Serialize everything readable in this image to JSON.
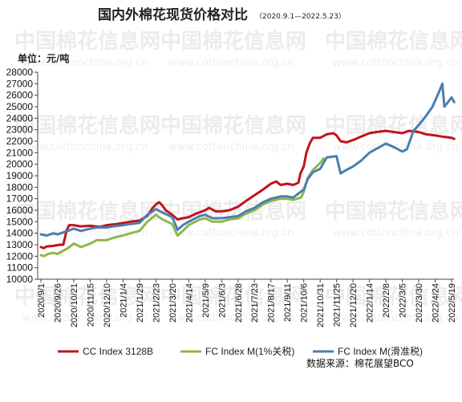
{
  "title": "国内外棉花现货价格对比",
  "subtitle": "（2020.9.1—2022.5.23）",
  "unit_label": "单位：元/吨",
  "source_label": "数据来源：棉花展望BCO",
  "watermark": {
    "name": "中国棉花信息网",
    "url": "www.cottonchina.org.cn"
  },
  "chart_data": {
    "type": "line",
    "title": "国内外棉花现货价格对比",
    "ylim": [
      10000,
      28000
    ],
    "y_ticks": [
      10000,
      11000,
      12000,
      13000,
      14000,
      15000,
      16000,
      17000,
      18000,
      19000,
      20000,
      21000,
      22000,
      23000,
      24000,
      25000,
      26000,
      27000,
      28000
    ],
    "x_tick_labels": [
      "2020/9/1",
      "2020/9/26",
      "2020/10/21",
      "2020/11/15",
      "2020/12/10",
      "2021/1/4",
      "2021/1/29",
      "2021/2/23",
      "2021/3/20",
      "2021/4/14",
      "2021/5/9",
      "2021/6/3",
      "2021/6/28",
      "2021/7/23",
      "2021/8/17",
      "2021/9/11",
      "2021/10/6",
      "2021/10/31",
      "2021/11/25",
      "2021/12/20",
      "2022/1/14",
      "2022/2/8",
      "2022/3/5",
      "2022/3/30",
      "2022/4/24",
      "2022/5/19"
    ],
    "grid": false,
    "legend_position": "bottom",
    "series": [
      {
        "name": "CC Index 3128B",
        "color": "#c0141c",
        "points": [
          [
            "2020-09-01",
            12800
          ],
          [
            "2020-09-05",
            12700
          ],
          [
            "2020-09-10",
            12850
          ],
          [
            "2020-09-20",
            12900
          ],
          [
            "2020-09-30",
            13000
          ],
          [
            "2020-10-05",
            13000
          ],
          [
            "2020-10-10",
            14200
          ],
          [
            "2020-10-14",
            14700
          ],
          [
            "2020-10-21",
            14700
          ],
          [
            "2020-10-31",
            14600
          ],
          [
            "2020-11-15",
            14650
          ],
          [
            "2020-11-30",
            14550
          ],
          [
            "2020-12-10",
            14700
          ],
          [
            "2020-12-25",
            14800
          ],
          [
            "2021-01-04",
            14900
          ],
          [
            "2021-01-15",
            15000
          ],
          [
            "2021-01-29",
            15100
          ],
          [
            "2021-02-10",
            15500
          ],
          [
            "2021-02-18",
            16200
          ],
          [
            "2021-02-23",
            16500
          ],
          [
            "2021-02-28",
            16700
          ],
          [
            "2021-03-05",
            16400
          ],
          [
            "2021-03-10",
            16000
          ],
          [
            "2021-03-20",
            15600
          ],
          [
            "2021-03-28",
            15200
          ],
          [
            "2021-04-05",
            15300
          ],
          [
            "2021-04-14",
            15400
          ],
          [
            "2021-04-25",
            15700
          ],
          [
            "2021-05-09",
            16000
          ],
          [
            "2021-05-15",
            16200
          ],
          [
            "2021-05-25",
            15900
          ],
          [
            "2021-06-03",
            15900
          ],
          [
            "2021-06-15",
            16000
          ],
          [
            "2021-06-28",
            16300
          ],
          [
            "2021-07-10",
            16800
          ],
          [
            "2021-07-23",
            17300
          ],
          [
            "2021-08-05",
            17800
          ],
          [
            "2021-08-17",
            18300
          ],
          [
            "2021-08-25",
            18500
          ],
          [
            "2021-09-01",
            18200
          ],
          [
            "2021-09-11",
            18300
          ],
          [
            "2021-09-20",
            18200
          ],
          [
            "2021-09-28",
            18400
          ],
          [
            "2021-10-01",
            19200
          ],
          [
            "2021-10-06",
            19800
          ],
          [
            "2021-10-10",
            21000
          ],
          [
            "2021-10-15",
            21800
          ],
          [
            "2021-10-20",
            22300
          ],
          [
            "2021-10-31",
            22300
          ],
          [
            "2021-11-10",
            22600
          ],
          [
            "2021-11-20",
            22700
          ],
          [
            "2021-11-25",
            22500
          ],
          [
            "2021-12-01",
            22000
          ],
          [
            "2021-12-10",
            21900
          ],
          [
            "2021-12-20",
            22100
          ],
          [
            "2022-01-01",
            22400
          ],
          [
            "2022-01-14",
            22700
          ],
          [
            "2022-01-25",
            22800
          ],
          [
            "2022-02-08",
            22900
          ],
          [
            "2022-02-20",
            22800
          ],
          [
            "2022-03-05",
            22700
          ],
          [
            "2022-03-15",
            22900
          ],
          [
            "2022-03-30",
            22800
          ],
          [
            "2022-04-10",
            22600
          ],
          [
            "2022-04-24",
            22500
          ],
          [
            "2022-05-05",
            22400
          ],
          [
            "2022-05-19",
            22300
          ],
          [
            "2022-05-23",
            22200
          ]
        ]
      },
      {
        "name": "FC Index M(1%关税)",
        "color": "#8fb74a",
        "points": [
          [
            "2020-09-01",
            12100
          ],
          [
            "2020-09-05",
            12000
          ],
          [
            "2020-09-12",
            12200
          ],
          [
            "2020-09-20",
            12300
          ],
          [
            "2020-09-26",
            12200
          ],
          [
            "2020-10-12",
            12700
          ],
          [
            "2020-10-21",
            13100
          ],
          [
            "2020-11-01",
            12800
          ],
          [
            "2020-11-15",
            13100
          ],
          [
            "2020-11-25",
            13400
          ],
          [
            "2020-12-10",
            13400
          ],
          [
            "2020-12-20",
            13600
          ],
          [
            "2021-01-04",
            13800
          ],
          [
            "2021-01-15",
            14000
          ],
          [
            "2021-01-29",
            14200
          ],
          [
            "2021-02-10",
            15000
          ],
          [
            "2021-02-23",
            15600
          ],
          [
            "2021-03-05",
            15200
          ],
          [
            "2021-03-20",
            14800
          ],
          [
            "2021-03-28",
            13800
          ],
          [
            "2021-04-05",
            14200
          ],
          [
            "2021-04-14",
            14700
          ],
          [
            "2021-05-01",
            15200
          ],
          [
            "2021-05-09",
            15300
          ],
          [
            "2021-05-20",
            15000
          ],
          [
            "2021-06-03",
            15000
          ],
          [
            "2021-06-15",
            15200
          ],
          [
            "2021-06-28",
            15300
          ],
          [
            "2021-07-10",
            15700
          ],
          [
            "2021-07-23",
            16000
          ],
          [
            "2021-08-05",
            16500
          ],
          [
            "2021-08-17",
            16800
          ],
          [
            "2021-09-01",
            17000
          ],
          [
            "2021-09-11",
            17000
          ],
          [
            "2021-09-20",
            16900
          ],
          [
            "2021-10-02",
            17100
          ],
          [
            "2021-10-06",
            17600
          ],
          [
            "2021-10-12",
            18800
          ],
          [
            "2021-10-20",
            19500
          ],
          [
            "2021-10-31",
            20100
          ],
          [
            "2021-11-05",
            20500
          ]
        ]
      },
      {
        "name": "FC Index M(滑准税)",
        "color": "#4a7fb0",
        "points": [
          [
            "2020-09-01",
            13900
          ],
          [
            "2020-09-10",
            13800
          ],
          [
            "2020-09-20",
            14000
          ],
          [
            "2020-09-26",
            13900
          ],
          [
            "2020-10-12",
            14200
          ],
          [
            "2020-10-21",
            14400
          ],
          [
            "2020-11-01",
            14200
          ],
          [
            "2020-11-15",
            14400
          ],
          [
            "2020-11-25",
            14500
          ],
          [
            "2020-12-10",
            14500
          ],
          [
            "2020-12-20",
            14600
          ],
          [
            "2021-01-04",
            14700
          ],
          [
            "2021-01-15",
            14800
          ],
          [
            "2021-01-29",
            14900
          ],
          [
            "2021-02-10",
            15600
          ],
          [
            "2021-02-23",
            16100
          ],
          [
            "2021-03-05",
            15800
          ],
          [
            "2021-03-20",
            15400
          ],
          [
            "2021-03-28",
            14300
          ],
          [
            "2021-04-05",
            14700
          ],
          [
            "2021-04-14",
            15000
          ],
          [
            "2021-05-01",
            15500
          ],
          [
            "2021-05-09",
            15600
          ],
          [
            "2021-05-20",
            15300
          ],
          [
            "2021-06-03",
            15300
          ],
          [
            "2021-06-15",
            15400
          ],
          [
            "2021-06-28",
            15500
          ],
          [
            "2021-07-10",
            15900
          ],
          [
            "2021-07-23",
            16200
          ],
          [
            "2021-08-05",
            16700
          ],
          [
            "2021-08-17",
            17000
          ],
          [
            "2021-09-01",
            17200
          ],
          [
            "2021-09-11",
            17200
          ],
          [
            "2021-09-20",
            17100
          ],
          [
            "2021-10-06",
            17800
          ],
          [
            "2021-10-12",
            18700
          ],
          [
            "2021-10-20",
            19300
          ],
          [
            "2021-10-31",
            19600
          ],
          [
            "2021-11-10",
            20600
          ],
          [
            "2021-11-25",
            20700
          ],
          [
            "2021-12-01",
            19200
          ],
          [
            "2021-12-10",
            19500
          ],
          [
            "2021-12-20",
            19800
          ],
          [
            "2022-01-01",
            20300
          ],
          [
            "2022-01-14",
            21000
          ],
          [
            "2022-02-08",
            21800
          ],
          [
            "2022-02-20",
            21500
          ],
          [
            "2022-03-05",
            21100
          ],
          [
            "2022-03-12",
            21300
          ],
          [
            "2022-03-22",
            22900
          ],
          [
            "2022-03-30",
            23400
          ],
          [
            "2022-04-10",
            24200
          ],
          [
            "2022-04-20",
            25000
          ],
          [
            "2022-04-30",
            26300
          ],
          [
            "2022-05-05",
            27000
          ],
          [
            "2022-05-08",
            25000
          ],
          [
            "2022-05-19",
            25800
          ],
          [
            "2022-05-23",
            25400
          ]
        ]
      }
    ]
  }
}
